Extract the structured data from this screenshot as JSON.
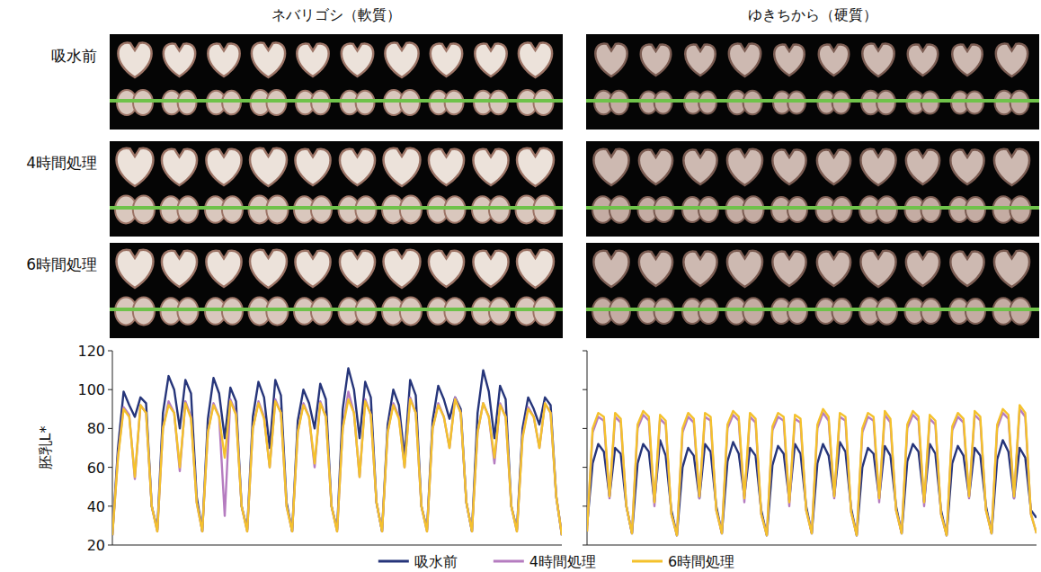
{
  "figure": {
    "columns": [
      "ネバリゴシ（軟質）",
      "ゆきちから（硬質）"
    ],
    "rows": [
      "吸水前",
      "4時間処理",
      "6時間処理"
    ]
  },
  "chart_data": [
    {
      "type": "line",
      "ylabel": "胚乳L*",
      "ylim": [
        20,
        120
      ],
      "yticks": [
        20,
        40,
        60,
        80,
        100,
        120
      ],
      "tick_labels": "y",
      "legend": "bottom",
      "series": [
        {
          "name": "吸水前",
          "color": "#26357a",
          "values": [
            25,
            70,
            99,
            92,
            86,
            96,
            93,
            40,
            28,
            88,
            107,
            100,
            80,
            105,
            98,
            45,
            27,
            85,
            106,
            98,
            75,
            101,
            94,
            40,
            28,
            86,
            104,
            96,
            70,
            105,
            97,
            42,
            27,
            84,
            100,
            93,
            80,
            103,
            95,
            40,
            28,
            90,
            111,
            100,
            75,
            104,
            96,
            42,
            27,
            82,
            100,
            92,
            65,
            105,
            97,
            40,
            28,
            84,
            102,
            95,
            85,
            96,
            90,
            42,
            27,
            88,
            110,
            99,
            75,
            102,
            95,
            40,
            28,
            80,
            96,
            90,
            82,
            96,
            92,
            45,
            25
          ]
        },
        {
          "name": "4時間処理",
          "color": "#b57cc0",
          "values": [
            25,
            66,
            91,
            87,
            54,
            92,
            88,
            40,
            27,
            80,
            94,
            88,
            58,
            94,
            86,
            42,
            27,
            78,
            93,
            86,
            35,
            95,
            88,
            40,
            27,
            80,
            94,
            86,
            60,
            95,
            88,
            40,
            27,
            78,
            93,
            86,
            60,
            94,
            86,
            40,
            27,
            80,
            99,
            88,
            55,
            95,
            87,
            42,
            27,
            78,
            93,
            86,
            60,
            96,
            88,
            40,
            27,
            80,
            93,
            86,
            70,
            96,
            88,
            42,
            27,
            78,
            93,
            86,
            62,
            93,
            86,
            40,
            27,
            76,
            91,
            86,
            70,
            93,
            88,
            45,
            25
          ]
        },
        {
          "name": "6時間処理",
          "color": "#f4c12c",
          "values": [
            25,
            65,
            90,
            86,
            55,
            92,
            88,
            40,
            27,
            80,
            92,
            88,
            60,
            93,
            85,
            42,
            27,
            78,
            92,
            86,
            65,
            94,
            87,
            40,
            27,
            80,
            93,
            85,
            60,
            94,
            88,
            40,
            27,
            78,
            92,
            86,
            62,
            93,
            86,
            40,
            27,
            80,
            95,
            88,
            55,
            94,
            87,
            42,
            27,
            78,
            92,
            85,
            60,
            95,
            88,
            40,
            27,
            80,
            92,
            86,
            70,
            95,
            88,
            42,
            27,
            78,
            93,
            86,
            65,
            92,
            86,
            40,
            27,
            75,
            90,
            86,
            70,
            93,
            88,
            45,
            25
          ]
        }
      ]
    },
    {
      "type": "line",
      "ylim": [
        20,
        120
      ],
      "yticks": [
        20,
        40,
        60,
        80,
        100,
        120
      ],
      "tick_labels": false,
      "series": [
        {
          "name": "吸水前",
          "color": "#26357a",
          "values": [
            30,
            62,
            72,
            68,
            45,
            70,
            67,
            40,
            26,
            62,
            72,
            68,
            42,
            74,
            66,
            38,
            25,
            60,
            70,
            66,
            44,
            72,
            68,
            40,
            26,
            63,
            73,
            67,
            45,
            70,
            66,
            38,
            25,
            61,
            71,
            67,
            43,
            72,
            67,
            40,
            26,
            62,
            72,
            66,
            45,
            73,
            68,
            39,
            25,
            60,
            70,
            67,
            44,
            71,
            66,
            40,
            26,
            63,
            72,
            68,
            42,
            72,
            67,
            38,
            25,
            62,
            71,
            66,
            45,
            70,
            66,
            40,
            26,
            64,
            74,
            68,
            44,
            70,
            65,
            38,
            34
          ]
        },
        {
          "name": "4時間処理",
          "color": "#b57cc0",
          "values": [
            27,
            78,
            86,
            84,
            44,
            86,
            83,
            40,
            26,
            80,
            87,
            84,
            40,
            85,
            82,
            36,
            25,
            78,
            86,
            83,
            44,
            86,
            84,
            38,
            26,
            80,
            87,
            84,
            42,
            86,
            83,
            36,
            25,
            79,
            86,
            84,
            40,
            85,
            83,
            38,
            26,
            80,
            88,
            84,
            44,
            86,
            84,
            37,
            25,
            78,
            86,
            84,
            42,
            87,
            83,
            38,
            26,
            80,
            87,
            84,
            40,
            85,
            82,
            36,
            25,
            79,
            86,
            83,
            44,
            87,
            84,
            38,
            26,
            80,
            88,
            85,
            44,
            90,
            86,
            36,
            26
          ]
        },
        {
          "name": "6時間処理",
          "color": "#f4c12c",
          "values": [
            27,
            80,
            88,
            86,
            45,
            88,
            85,
            40,
            26,
            82,
            89,
            86,
            42,
            87,
            84,
            36,
            25,
            80,
            88,
            85,
            45,
            88,
            86,
            38,
            26,
            82,
            89,
            86,
            44,
            88,
            85,
            36,
            25,
            81,
            88,
            86,
            42,
            87,
            85,
            38,
            26,
            82,
            90,
            86,
            45,
            88,
            86,
            37,
            25,
            80,
            88,
            86,
            44,
            89,
            85,
            38,
            26,
            82,
            89,
            86,
            42,
            87,
            84,
            36,
            25,
            81,
            88,
            85,
            45,
            89,
            86,
            38,
            26,
            82,
            90,
            87,
            45,
            92,
            88,
            36,
            26
          ]
        }
      ]
    }
  ]
}
